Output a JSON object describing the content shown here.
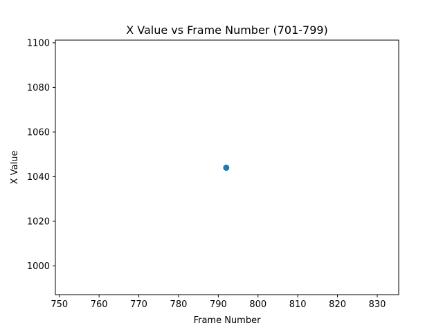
{
  "chart_data": {
    "type": "scatter",
    "title": "X Value vs Frame Number (701-799)",
    "xlabel": "Frame Number",
    "ylabel": "X Value",
    "xlim": [
      749.0,
      835.4
    ],
    "ylim": [
      987.1,
      1101.2
    ],
    "xticks": [
      750,
      760,
      770,
      780,
      790,
      800,
      810,
      820,
      830
    ],
    "yticks": [
      1000,
      1020,
      1040,
      1060,
      1080,
      1100
    ],
    "grid": false,
    "legend": false,
    "points": [
      {
        "x": 792,
        "y": 1044
      }
    ],
    "colors": {
      "marker": "#1f77b4",
      "axis": "#000000"
    }
  }
}
